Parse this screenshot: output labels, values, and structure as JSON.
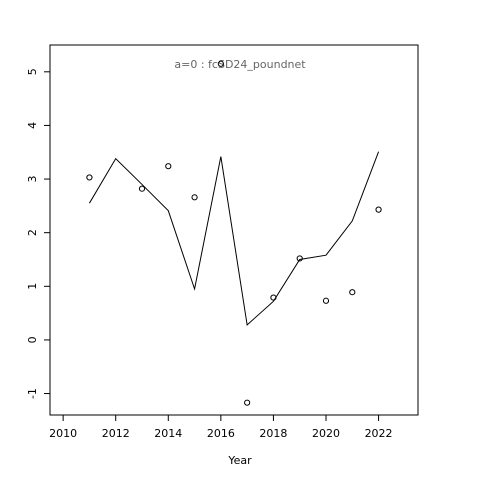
{
  "chart_data": {
    "type": "scatter",
    "title": "a=0  :  fcSD24_poundnet",
    "x_label": "Year",
    "x": [
      2011,
      2012,
      2013,
      2014,
      2015,
      2016,
      2017,
      2018,
      2019,
      2020,
      2021,
      2022
    ],
    "series": [
      {
        "type": "points",
        "color": "#000000",
        "values": [
          3.03,
          null,
          2.82,
          3.24,
          2.66,
          5.15,
          -1.17,
          0.79,
          1.52,
          0.73,
          0.89,
          2.43
        ]
      },
      {
        "type": "line",
        "color": "#000000",
        "values": [
          2.55,
          3.38,
          2.9,
          2.41,
          0.95,
          3.42,
          0.28,
          0.72,
          1.5,
          1.58,
          2.22,
          3.51
        ]
      }
    ],
    "xlim": [
      2009.5,
      2023.5
    ],
    "xticks": [
      2010,
      2012,
      2014,
      2016,
      2018,
      2020,
      2022
    ],
    "ylim": [
      -1.4,
      5.5
    ],
    "yticks": [
      -1,
      0,
      1,
      2,
      3,
      4,
      5
    ]
  }
}
